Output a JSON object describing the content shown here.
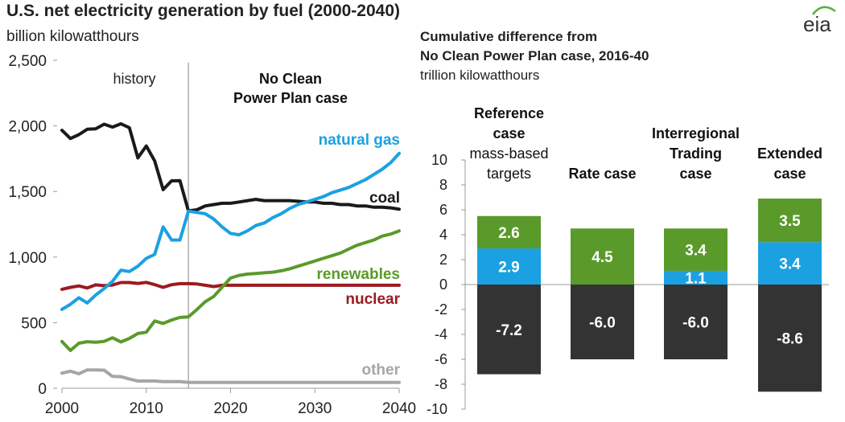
{
  "logo_text": "eia",
  "left_chart": {
    "title": "U.S. net electricity generation by fuel (2000-2040)",
    "units": "billion kilowatthours",
    "history_label": "history",
    "projection_label_line1": "No Clean",
    "projection_label_line2": "Power Plan case",
    "divider_year": 2015
  },
  "right_chart": {
    "title_line1": "Cumulative difference from",
    "title_line2": "No Clean Power Plan case, 2016-40",
    "units": "trillion kilowatthours"
  },
  "colors": {
    "natural_gas": "#1ba1e2",
    "coal": "#1a1a1a",
    "renewables": "#5a9a2a",
    "nuclear": "#9b1b20",
    "other": "#a6a6a6",
    "bar_negative": "#333333",
    "axis": "#999999",
    "divider": "#9a9a9a"
  },
  "chart_data": [
    {
      "type": "line",
      "title": "U.S. net electricity generation by fuel (2000-2040)",
      "ylabel": "billion kilowatthours",
      "xlim": [
        2000,
        2040
      ],
      "ylim": [
        0,
        2500
      ],
      "xticks": [
        2000,
        2010,
        2020,
        2030,
        2040
      ],
      "xtick_labels": [
        "2000",
        "2010",
        "2020",
        "2030",
        "2040"
      ],
      "yticks": [
        0,
        500,
        1000,
        1500,
        2000,
        2500
      ],
      "ytick_labels": [
        "0",
        "500",
        "1,000",
        "1,500",
        "2,000",
        "2,500"
      ],
      "grid": false,
      "series": [
        {
          "name": "natural gas",
          "key": "natural_gas",
          "x": [
            2000,
            2001,
            2002,
            2003,
            2004,
            2005,
            2006,
            2007,
            2008,
            2009,
            2010,
            2011,
            2012,
            2013,
            2014,
            2015,
            2016,
            2017,
            2018,
            2019,
            2020,
            2021,
            2022,
            2023,
            2024,
            2025,
            2026,
            2027,
            2028,
            2029,
            2030,
            2031,
            2032,
            2033,
            2034,
            2035,
            2036,
            2037,
            2038,
            2039,
            2040
          ],
          "values": [
            601,
            640,
            690,
            650,
            710,
            760,
            815,
            900,
            890,
            930,
            990,
            1020,
            1230,
            1130,
            1130,
            1350,
            1340,
            1330,
            1290,
            1230,
            1180,
            1170,
            1200,
            1240,
            1260,
            1300,
            1330,
            1370,
            1400,
            1420,
            1440,
            1460,
            1490,
            1510,
            1530,
            1560,
            1590,
            1630,
            1670,
            1720,
            1790
          ]
        },
        {
          "name": "coal",
          "key": "coal",
          "x": [
            2000,
            2001,
            2002,
            2003,
            2004,
            2005,
            2006,
            2007,
            2008,
            2009,
            2010,
            2011,
            2012,
            2013,
            2014,
            2015,
            2016,
            2017,
            2018,
            2019,
            2020,
            2021,
            2022,
            2023,
            2024,
            2025,
            2026,
            2027,
            2028,
            2029,
            2030,
            2031,
            2032,
            2033,
            2034,
            2035,
            2036,
            2037,
            2038,
            2039,
            2040
          ],
          "values": [
            1966,
            1904,
            1933,
            1974,
            1978,
            2013,
            1991,
            2016,
            1986,
            1756,
            1847,
            1733,
            1514,
            1581,
            1582,
            1352,
            1360,
            1390,
            1400,
            1410,
            1410,
            1420,
            1430,
            1440,
            1430,
            1430,
            1430,
            1430,
            1425,
            1420,
            1420,
            1410,
            1410,
            1400,
            1400,
            1390,
            1390,
            1380,
            1380,
            1375,
            1365
          ]
        },
        {
          "name": "renewables",
          "key": "renewables",
          "x": [
            2000,
            2001,
            2002,
            2003,
            2004,
            2005,
            2006,
            2007,
            2008,
            2009,
            2010,
            2011,
            2012,
            2013,
            2014,
            2015,
            2016,
            2017,
            2018,
            2019,
            2020,
            2021,
            2022,
            2023,
            2024,
            2025,
            2026,
            2027,
            2028,
            2029,
            2030,
            2031,
            2032,
            2033,
            2034,
            2035,
            2036,
            2037,
            2038,
            2039,
            2040
          ],
          "values": [
            356,
            288,
            343,
            355,
            351,
            357,
            385,
            353,
            380,
            417,
            427,
            513,
            494,
            520,
            540,
            544,
            600,
            660,
            700,
            770,
            840,
            860,
            870,
            875,
            880,
            885,
            895,
            910,
            930,
            950,
            970,
            990,
            1010,
            1030,
            1060,
            1090,
            1110,
            1130,
            1160,
            1175,
            1200
          ]
        },
        {
          "name": "nuclear",
          "key": "nuclear",
          "x": [
            2000,
            2001,
            2002,
            2003,
            2004,
            2005,
            2006,
            2007,
            2008,
            2009,
            2010,
            2011,
            2012,
            2013,
            2014,
            2015,
            2016,
            2017,
            2018,
            2019,
            2020,
            2021,
            2022,
            2023,
            2024,
            2025,
            2026,
            2027,
            2028,
            2029,
            2030,
            2031,
            2032,
            2033,
            2034,
            2035,
            2036,
            2037,
            2038,
            2039,
            2040
          ],
          "values": [
            754,
            769,
            780,
            764,
            788,
            782,
            787,
            806,
            806,
            799,
            807,
            790,
            769,
            789,
            797,
            797,
            795,
            785,
            775,
            785,
            785,
            785,
            785,
            785,
            785,
            785,
            785,
            785,
            785,
            785,
            785,
            785,
            785,
            785,
            785,
            785,
            785,
            785,
            785,
            785,
            785
          ]
        },
        {
          "name": "other",
          "key": "other",
          "x": [
            2000,
            2001,
            2002,
            2003,
            2004,
            2005,
            2006,
            2007,
            2008,
            2009,
            2010,
            2011,
            2012,
            2013,
            2014,
            2015,
            2016,
            2017,
            2018,
            2019,
            2020,
            2021,
            2022,
            2023,
            2024,
            2025,
            2026,
            2027,
            2028,
            2029,
            2030,
            2031,
            2032,
            2033,
            2034,
            2035,
            2036,
            2037,
            2038,
            2039,
            2040
          ],
          "values": [
            115,
            130,
            110,
            140,
            140,
            138,
            90,
            88,
            70,
            55,
            55,
            55,
            50,
            50,
            50,
            45,
            45,
            45,
            45,
            45,
            45,
            45,
            45,
            45,
            45,
            45,
            45,
            45,
            45,
            45,
            45,
            45,
            45,
            45,
            45,
            45,
            45,
            45,
            45,
            45,
            45
          ]
        }
      ],
      "annotations": [
        {
          "text": "natural gas",
          "series": "natural_gas"
        },
        {
          "text": "coal",
          "series": "coal"
        },
        {
          "text": "renewables",
          "series": "renewables"
        },
        {
          "text": "nuclear",
          "series": "nuclear"
        },
        {
          "text": "other",
          "series": "other"
        }
      ]
    },
    {
      "type": "bar",
      "stacked": true,
      "title": "Cumulative difference from No Clean Power Plan case, 2016-40",
      "ylabel": "trillion kilowatthours",
      "ylim": [
        -10,
        10
      ],
      "yticks": [
        -10,
        -8,
        -6,
        -4,
        -2,
        0,
        2,
        4,
        6,
        8,
        10
      ],
      "ytick_labels": [
        "-10",
        "-8",
        "-6",
        "-4",
        "-2",
        "0",
        "2",
        "4",
        "6",
        "8",
        "10"
      ],
      "categories": [
        "Reference case mass-based targets",
        "Rate case",
        "Interregional Trading case",
        "Extended case"
      ],
      "category_labels": [
        [
          {
            "text": "Reference",
            "bold": true
          },
          {
            "text": "case",
            "bold": true
          },
          {
            "text": "mass-based",
            "bold": false
          },
          {
            "text": "targets",
            "bold": false
          }
        ],
        [
          {
            "text": "Rate case",
            "bold": true
          }
        ],
        [
          {
            "text": "Interregional",
            "bold": true
          },
          {
            "text": "Trading",
            "bold": true
          },
          {
            "text": "case",
            "bold": true
          }
        ],
        [
          {
            "text": "Extended",
            "bold": true
          },
          {
            "text": "case",
            "bold": true
          }
        ]
      ],
      "series": [
        {
          "name": "coal",
          "key": "bar_negative",
          "values": [
            -7.2,
            -6.0,
            -6.0,
            -8.6
          ],
          "labels": [
            "-7.2",
            "-6.0",
            "-6.0",
            "-8.6"
          ]
        },
        {
          "name": "natural gas",
          "key": "natural_gas",
          "values": [
            2.9,
            0,
            1.1,
            3.4
          ],
          "labels": [
            "2.9",
            "",
            "1.1",
            "3.4"
          ]
        },
        {
          "name": "renewables",
          "key": "renewables",
          "values": [
            2.6,
            4.5,
            3.4,
            3.5
          ],
          "labels": [
            "2.6",
            "4.5",
            "3.4",
            "3.5"
          ]
        }
      ]
    }
  ]
}
